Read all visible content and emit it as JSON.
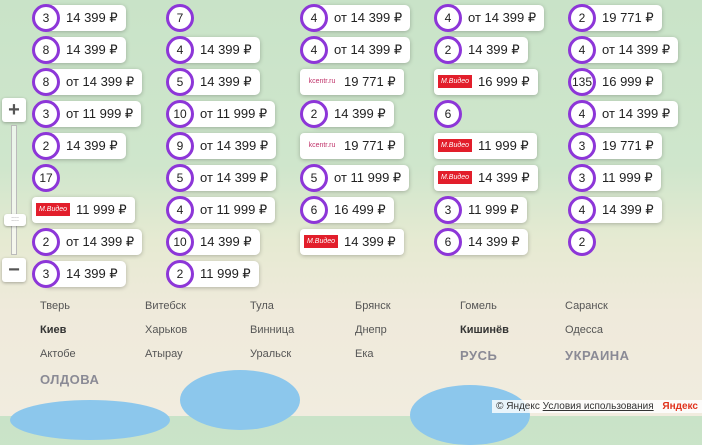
{
  "map": {
    "cities": [
      "Тверь",
      "Витебск",
      "Тула",
      "Брянск",
      "Гомель",
      "Саранск",
      "Киев",
      "Харьков",
      "Винница",
      "Днепр",
      "Кишинёв",
      "Одесса",
      "Актобе",
      "Атырау",
      "Уральск",
      "Ека"
    ],
    "countries": [
      "РУСЬ",
      "УКРАИНА",
      "ОЛДОВА"
    ]
  },
  "controls": {
    "zoom_in": "+",
    "zoom_out": "−",
    "handle": "::::"
  },
  "clusters": [
    {
      "count": "3",
      "price": "14 399 ₽"
    },
    {
      "count": "8",
      "price": "14 399 ₽"
    },
    {
      "count": "4",
      "price": "14 399 ₽"
    },
    {
      "count": "5",
      "price": "14 399 ₽"
    },
    {
      "count": "2",
      "price": "14 399 ₽"
    },
    {
      "count": "2",
      "price": "19 771 ₽"
    },
    {
      "count": "7",
      "price": ""
    },
    {
      "count": "4",
      "price": "от 14 399 ₽"
    },
    {
      "count": "4",
      "price": "от 14 399 ₽"
    },
    {
      "count": "4",
      "price": "от 14 399 ₽"
    },
    {
      "count": "4",
      "price": "от 14 399 ₽"
    },
    {
      "count": "8",
      "price": "от 14 399 ₽"
    },
    {
      "count": "135",
      "price": "16 999 ₽"
    },
    {
      "count": "2",
      "price": "14 399 ₽"
    },
    {
      "count": "10",
      "price": "от 11 999 ₽"
    },
    {
      "count": "3",
      "price": "от 11 999 ₽"
    },
    {
      "count": "2",
      "price": "14 399 ₽"
    },
    {
      "count": "4",
      "price": "от 14 399 ₽"
    },
    {
      "count": "9",
      "price": "от 14 399 ₽"
    },
    {
      "count": "6",
      "price": ""
    },
    {
      "count": "3",
      "price": "11 999 ₽"
    },
    {
      "count": "5",
      "price": "от 11 999 ₽"
    },
    {
      "count": "17",
      "price": ""
    },
    {
      "count": "5",
      "price": "от 14 399 ₽"
    },
    {
      "count": "3",
      "price": "19 771 ₽"
    },
    {
      "count": "4",
      "price": "от 11 999 ₽"
    },
    {
      "count": "4",
      "price": "14 399 ₽"
    },
    {
      "count": "3",
      "price": "11 999 ₽"
    },
    {
      "count": "6",
      "price": "16 499 ₽"
    },
    {
      "count": "2",
      "price": "от 14 399 ₽"
    },
    {
      "count": "10",
      "price": "14 399 ₽"
    },
    {
      "count": "6",
      "price": "14 399 ₽"
    },
    {
      "count": "2",
      "price": ""
    },
    {
      "count": "3",
      "price": "14 399 ₽"
    },
    {
      "count": "2",
      "price": "11 999 ₽"
    }
  ],
  "stores": [
    {
      "store": "М.Видео",
      "price": "16 999 ₽"
    },
    {
      "store": "М.Видео",
      "price": "11 999 ₽"
    },
    {
      "store": "М.Видео",
      "price": "11 999 ₽"
    },
    {
      "store": "kcentr.ru",
      "price": "19 771 ₽"
    },
    {
      "store": "kcentr.ru",
      "price": "19 771 ₽"
    },
    {
      "store": "М.Видео",
      "price": "14 399 ₽"
    },
    {
      "store": "М.Видео",
      "price": "14 399 ₽"
    }
  ],
  "footer": {
    "copyright": "© Яндекс",
    "terms": "Условия использования",
    "logo": "Яндекс"
  },
  "colors": {
    "cluster_ring": "#8d36d8",
    "mvideo": "#e21e2b"
  }
}
